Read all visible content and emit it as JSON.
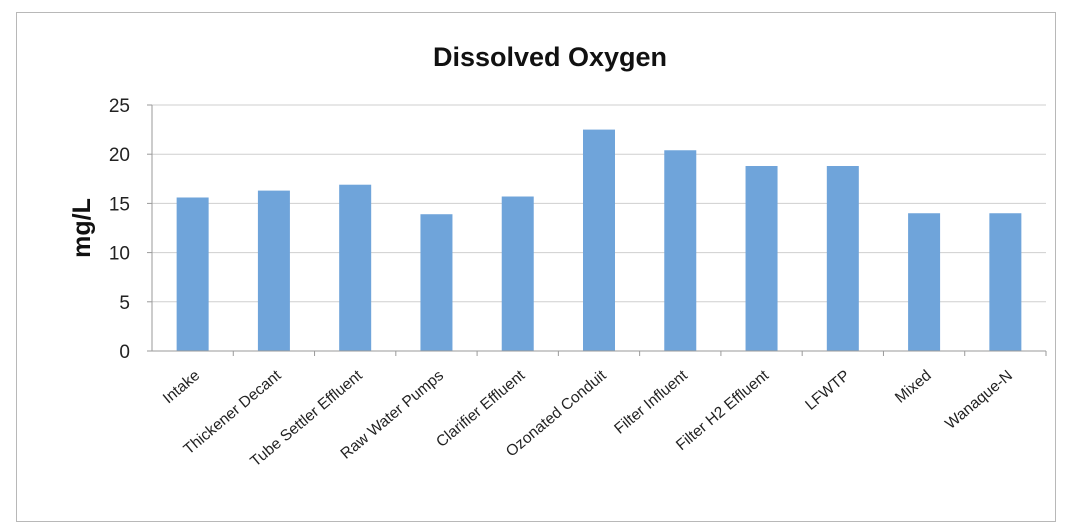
{
  "chart_data": {
    "type": "bar",
    "title": "Dissolved Oxygen",
    "xlabel": "",
    "ylabel": "mg/L",
    "ylim": [
      0,
      25
    ],
    "yticks": [
      0,
      5,
      10,
      15,
      20,
      25
    ],
    "grid": true,
    "legend": "none",
    "bar_color": "#6fa4da",
    "categories": [
      "Intake",
      "Thickener Decant",
      "Tube Settler Effluent",
      "Raw Water Pumps",
      "Clarifier Effluent",
      "Ozonated Conduit",
      "Filter Influent",
      "Filter H2 Effluent",
      "LFWTP",
      "Mixed",
      "Wanaque-N"
    ],
    "values": [
      15.6,
      16.3,
      16.9,
      13.9,
      15.7,
      22.5,
      20.4,
      18.8,
      18.8,
      14.0,
      14.0
    ]
  }
}
